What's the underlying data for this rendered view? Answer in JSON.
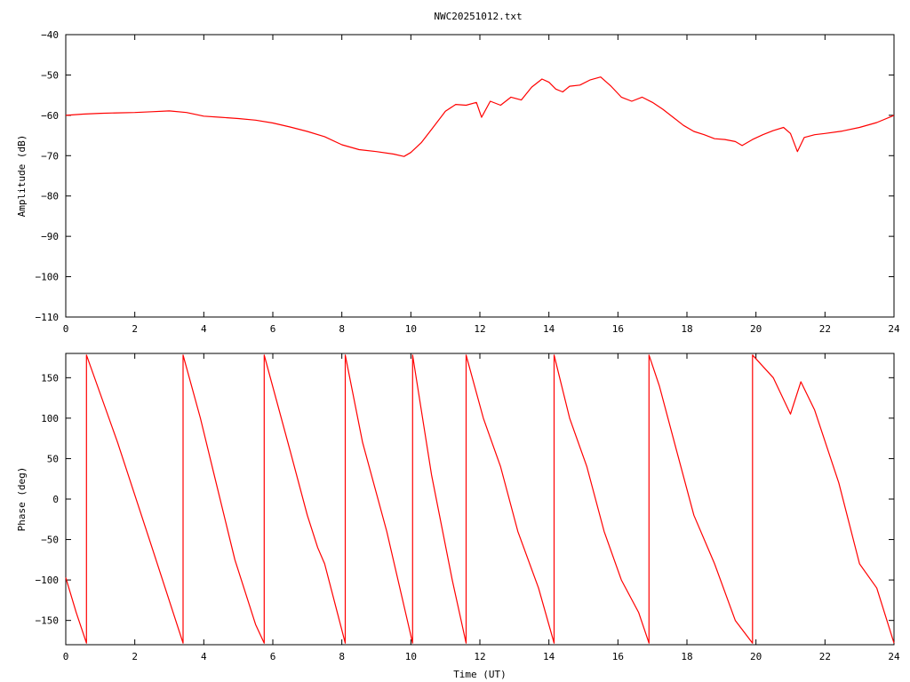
{
  "title": "NWC20251012.txt",
  "colors": {
    "series": "#ff0000",
    "axis": "#000000",
    "background": "#ffffff"
  },
  "chart_data": [
    {
      "type": "line",
      "name": "amplitude",
      "ylabel": "Amplitude (dB)",
      "xlabel": "",
      "xlim": [
        0,
        24
      ],
      "ylim": [
        -110,
        -40
      ],
      "xticks": [
        0,
        2,
        4,
        6,
        8,
        10,
        12,
        14,
        16,
        18,
        20,
        22,
        24
      ],
      "yticks": [
        -40,
        -50,
        -60,
        -70,
        -80,
        -90,
        -100,
        -110
      ],
      "grid": false,
      "legend": "none",
      "series": [
        {
          "x": [
            0,
            0.5,
            1,
            1.5,
            2,
            2.5,
            3,
            3.5,
            4,
            4.5,
            5,
            5.5,
            6,
            6.5,
            7,
            7.5,
            8,
            8.5,
            9,
            9.5,
            9.8,
            10,
            10.3,
            10.6,
            11,
            11.3,
            11.6,
            11.9,
            12.05,
            12.3,
            12.6,
            12.9,
            13.2,
            13.5,
            13.8,
            14,
            14.2,
            14.4,
            14.6,
            14.9,
            15.2,
            15.5,
            15.8,
            16.1,
            16.4,
            16.7,
            17,
            17.3,
            17.6,
            17.9,
            18.2,
            18.5,
            18.8,
            19.1,
            19.4,
            19.6,
            19.9,
            20.2,
            20.5,
            20.8,
            21,
            21.2,
            21.4,
            21.7,
            22,
            22.5,
            23,
            23.5,
            24
          ],
          "y": [
            -60,
            -59.7,
            -59.5,
            -59.4,
            -59.3,
            -59.1,
            -58.9,
            -59.3,
            -60.2,
            -60.5,
            -60.8,
            -61.2,
            -61.9,
            -62.9,
            -64.0,
            -65.3,
            -67.3,
            -68.5,
            -69.0,
            -69.6,
            -70.2,
            -69.2,
            -66.8,
            -63.5,
            -59.0,
            -57.3,
            -57.5,
            -56.8,
            -60.5,
            -56.5,
            -57.5,
            -55.5,
            -56.2,
            -53.0,
            -51.0,
            -51.8,
            -53.5,
            -54.2,
            -52.8,
            -52.5,
            -51.2,
            -50.5,
            -52.8,
            -55.5,
            -56.5,
            -55.5,
            -56.8,
            -58.5,
            -60.5,
            -62.5,
            -64.0,
            -64.8,
            -65.8,
            -66.0,
            -66.5,
            -67.5,
            -66.0,
            -64.8,
            -63.8,
            -63.0,
            -64.5,
            -69.0,
            -65.5,
            -64.8,
            -64.5,
            -63.9,
            -63.0,
            -61.8,
            -60.0
          ]
        }
      ]
    },
    {
      "type": "line",
      "name": "phase",
      "ylabel": "Phase (deg)",
      "xlabel": "Time (UT)",
      "xlim": [
        0,
        24
      ],
      "ylim": [
        -180,
        180
      ],
      "xticks": [
        0,
        2,
        4,
        6,
        8,
        10,
        12,
        14,
        16,
        18,
        20,
        22,
        24
      ],
      "yticks": [
        150,
        100,
        50,
        0,
        -50,
        -100,
        -150
      ],
      "grid": false,
      "legend": "none",
      "series": [
        {
          "x": [
            0,
            0.3,
            0.6,
            0.6,
            1.5,
            2.5,
            3.4,
            3.4,
            3.9,
            4.3,
            4.9,
            5.5,
            5.75,
            5.75,
            6.5,
            7.0,
            7.3,
            7.5,
            8.1,
            8.1,
            8.6,
            9.3,
            10.05,
            10.05,
            10.6,
            11.2,
            11.6,
            11.6,
            12.1,
            12.6,
            13.1,
            13.7,
            14.15,
            14.15,
            14.6,
            15.1,
            15.6,
            16.1,
            16.6,
            16.9,
            16.9,
            17.2,
            17.7,
            18.2,
            18.8,
            19.4,
            19.9,
            19.9,
            20.5,
            21.0,
            21.3,
            21.7,
            22.4,
            23.0,
            23.5,
            24.0
          ],
          "y": [
            -97,
            -140,
            -178,
            178,
            70,
            -60,
            -178,
            178,
            100,
            30,
            -75,
            -155,
            -178,
            178,
            60,
            -20,
            -60,
            -80,
            -178,
            178,
            70,
            -40,
            -178,
            178,
            30,
            -100,
            -178,
            178,
            100,
            40,
            -40,
            -110,
            -178,
            178,
            100,
            40,
            -40,
            -100,
            -140,
            -178,
            178,
            140,
            60,
            -20,
            -80,
            -150,
            -178,
            178,
            150,
            105,
            145,
            110,
            20,
            -80,
            -110,
            -178
          ]
        }
      ]
    }
  ]
}
